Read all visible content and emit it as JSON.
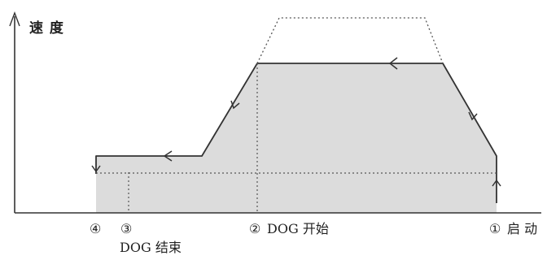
{
  "y_axis_label": "速 度",
  "points": [
    {
      "marker": "④",
      "text": ""
    },
    {
      "marker": "③",
      "text": "DOG 结束"
    },
    {
      "marker": "②",
      "text": "DOG 开始"
    },
    {
      "marker": "①",
      "text": "启 动"
    }
  ],
  "colors": {
    "fill": "#dcdcdc",
    "line": "#333333",
    "dotted": "#555555"
  }
}
